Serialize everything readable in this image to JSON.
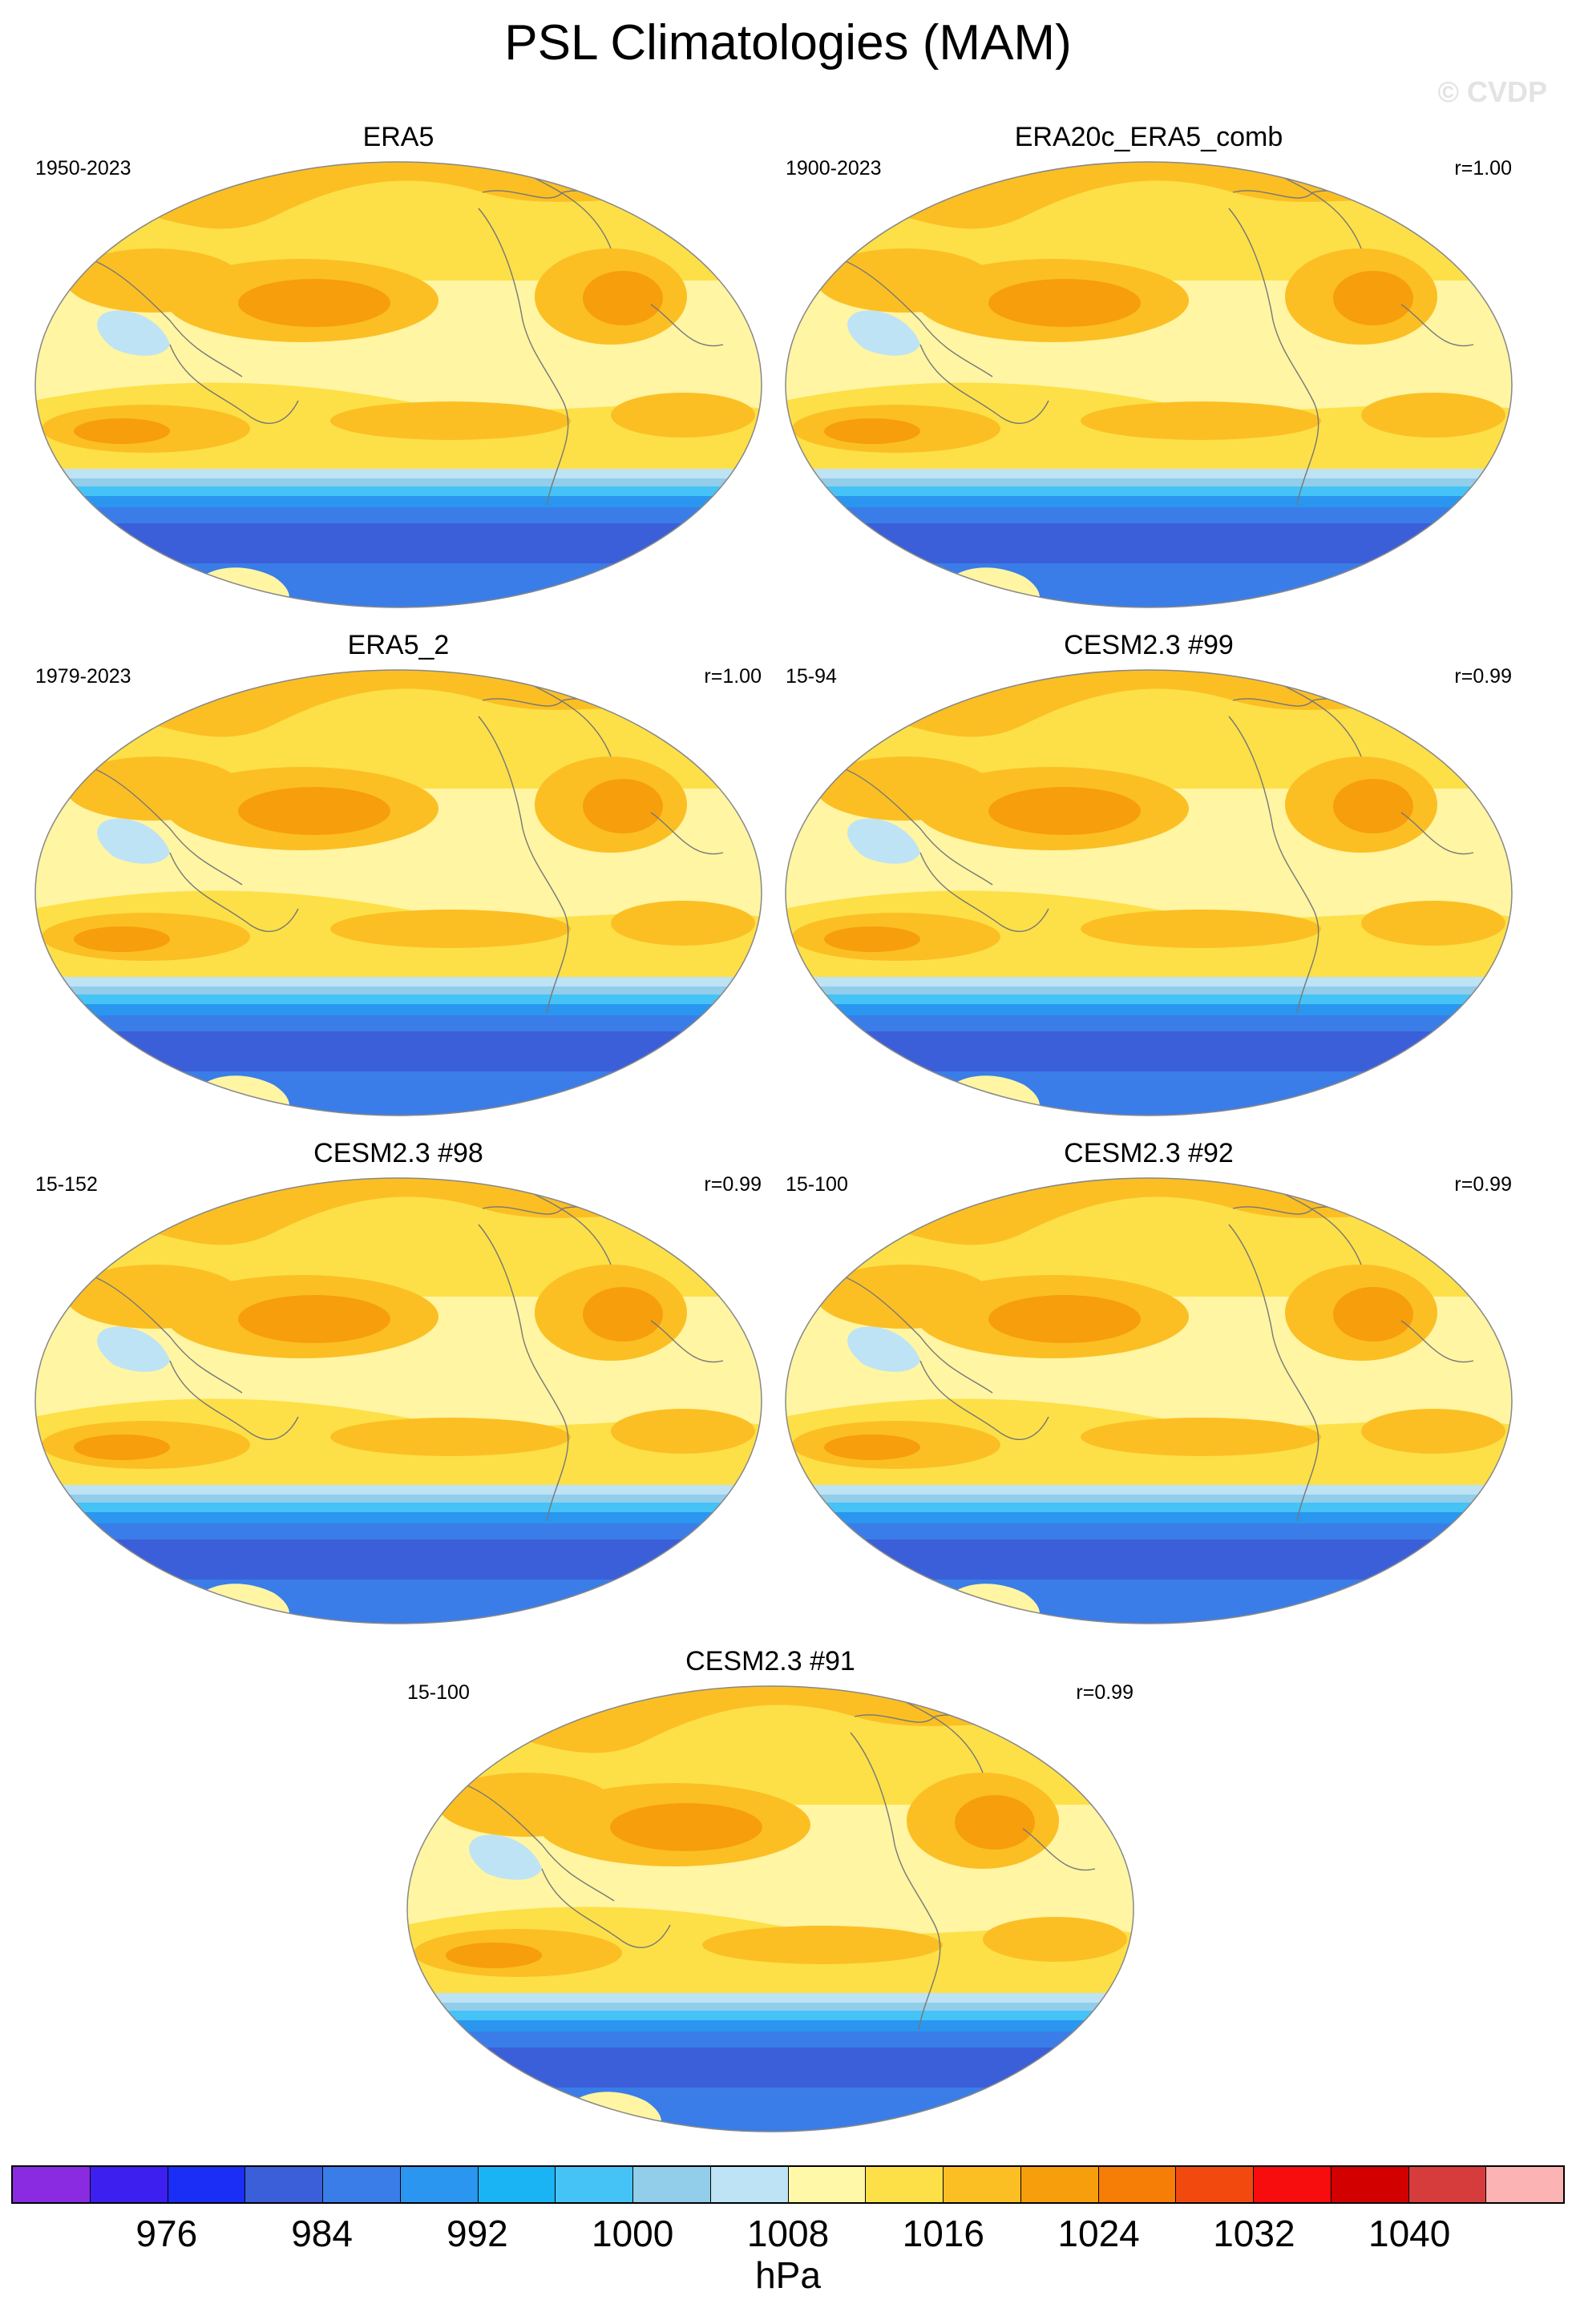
{
  "title": "PSL Climatologies (MAM)",
  "watermark": "© CVDP",
  "panels": [
    {
      "name": "ERA5",
      "period": "1950-2023",
      "corr": ""
    },
    {
      "name": "ERA20c_ERA5_comb",
      "period": "1900-2023",
      "corr": "r=1.00"
    },
    {
      "name": "ERA5_2",
      "period": "1979-2023",
      "corr": "r=1.00"
    },
    {
      "name": "CESM2.3 #99",
      "period": "15-94",
      "corr": "r=0.99"
    },
    {
      "name": "CESM2.3 #98",
      "period": "15-152",
      "corr": "r=0.99"
    },
    {
      "name": "CESM2.3 #92",
      "period": "15-100",
      "corr": "r=0.99"
    },
    {
      "name": "CESM2.3 #91",
      "period": "15-100",
      "corr": "r=0.99"
    }
  ],
  "colorbar": {
    "units": "hPa",
    "labels": [
      "976",
      "984",
      "992",
      "1000",
      "1008",
      "1016",
      "1024",
      "1032",
      "1040"
    ],
    "colors": [
      "#8a2be2",
      "#3d1ff0",
      "#1a2ef5",
      "#3b5fd9",
      "#3a7de8",
      "#2a96f0",
      "#1ab4f5",
      "#45c3f7",
      "#92cdea",
      "#bde3f5",
      "#fff8a8",
      "#fde047",
      "#fbbf24",
      "#f79e0c",
      "#f67d06",
      "#f24a0e",
      "#f70d0d",
      "#d30000",
      "#d63c3c",
      "#fbb3b3"
    ]
  }
}
